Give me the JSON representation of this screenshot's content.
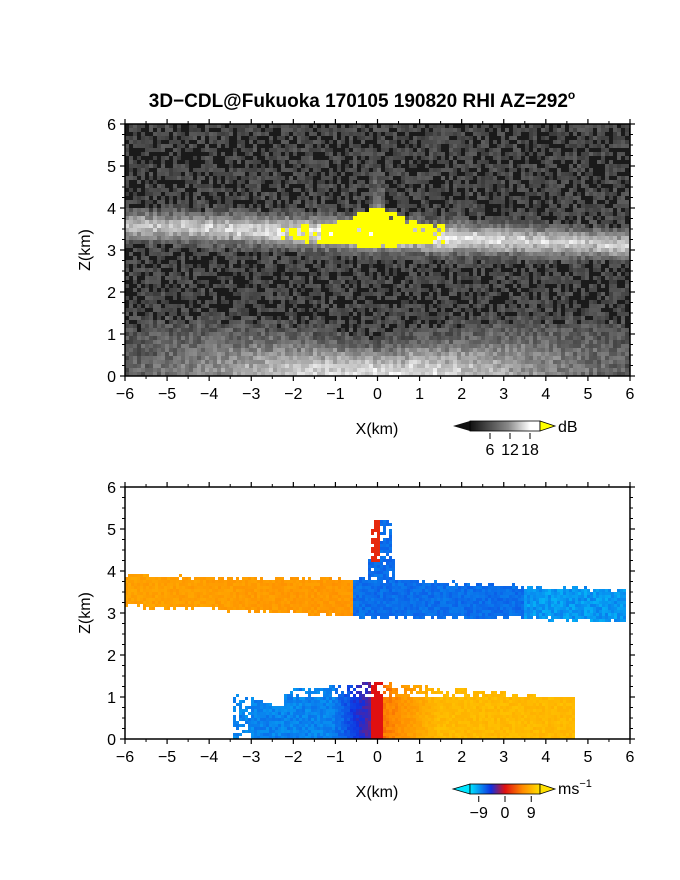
{
  "chart_data": [
    {
      "type": "heatmap",
      "panel": "reflectivity",
      "title_parts": {
        "main": "3D−CDL@Fukuoka 170105 190820 RHI AZ=292",
        "sup": "o"
      },
      "xlabel": "X(km)",
      "ylabel": "Z(km)",
      "xlim": [
        -6,
        6
      ],
      "ylim": [
        0,
        6
      ],
      "xticks": [
        "−6",
        "−5",
        "−4",
        "−3",
        "−2",
        "−1",
        "0",
        "1",
        "2",
        "3",
        "4",
        "5",
        "6"
      ],
      "yticks": [
        "0",
        "1",
        "2",
        "3",
        "4",
        "5",
        "6"
      ],
      "colorbar": {
        "unit": "dB",
        "ticks": [
          "6",
          "12",
          "18"
        ],
        "tick_values": [
          6,
          12,
          18
        ],
        "range": [
          0,
          21
        ],
        "colormap": "grayscale with yellow above 18",
        "colors": {
          "low": "#111111",
          "high": "#ffffff",
          "over": "#ffff00"
        }
      },
      "features": {
        "bright_band_top_km": 3.7,
        "bright_band_bottom_km": 3.0,
        "saturated_core_x_km": [
          -2.3,
          1.6
        ],
        "ground_clutter_top_km": 1.4
      }
    },
    {
      "type": "heatmap",
      "panel": "doppler_velocity",
      "xlabel": "X(km)",
      "ylabel": "Z(km)",
      "xlim": [
        -6,
        6
      ],
      "ylim": [
        0,
        6
      ],
      "xticks": [
        "−6",
        "−5",
        "−4",
        "−3",
        "−2",
        "−1",
        "0",
        "1",
        "2",
        "3",
        "4",
        "5",
        "6"
      ],
      "yticks": [
        "0",
        "1",
        "2",
        "3",
        "4",
        "5",
        "6"
      ],
      "colorbar": {
        "unit_base": "ms",
        "unit_sup": "−1",
        "ticks": [
          "−9",
          "0",
          "9"
        ],
        "tick_values": [
          -9,
          0,
          9
        ],
        "range": [
          -12,
          12
        ],
        "colormap": "cyan-blue-red-yellow diverging",
        "colors": {
          "min": "#00e5ff",
          "neg": "#1030e0",
          "zero": "#e01010",
          "pos": "#ffe000"
        }
      },
      "features": {
        "upper_layer_left_velocity_ms": 6,
        "upper_layer_right_velocity_ms": -8,
        "lower_layer_left_velocity_ms": -9,
        "lower_layer_right_velocity_ms": 8
      }
    }
  ]
}
